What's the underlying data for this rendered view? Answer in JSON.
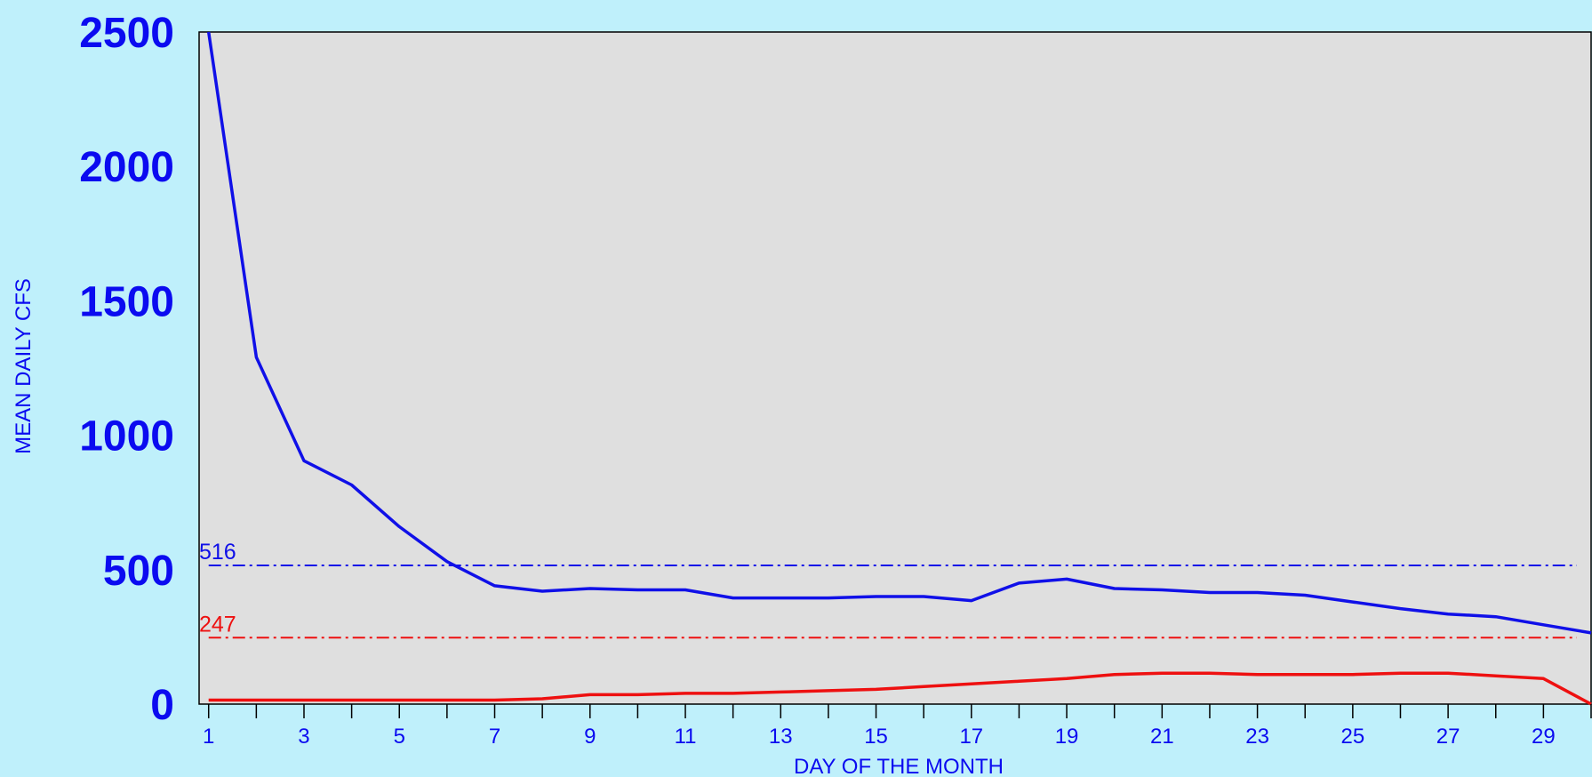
{
  "chart_data": {
    "type": "line",
    "title": "",
    "xlabel": "DAY OF THE MONTH",
    "ylabel": "MEAN DAILY CFS",
    "xlim": [
      0.8,
      30
    ],
    "ylim": [
      0,
      2500
    ],
    "yticks": [
      0,
      500,
      1000,
      1500,
      2000,
      2500
    ],
    "xtick_labels": [
      1,
      3,
      5,
      7,
      9,
      11,
      13,
      15,
      17,
      19,
      21,
      23,
      25,
      27,
      29
    ],
    "x": [
      1,
      2,
      3,
      4,
      5,
      6,
      7,
      8,
      9,
      10,
      11,
      12,
      13,
      14,
      15,
      16,
      17,
      18,
      19,
      20,
      21,
      22,
      23,
      24,
      25,
      26,
      27,
      28,
      29,
      30
    ],
    "series": [
      {
        "color": "#1010e8",
        "values": [
          2500,
          1290,
          905,
          815,
          660,
          530,
          440,
          420,
          430,
          425,
          425,
          395,
          395,
          395,
          400,
          400,
          385,
          450,
          465,
          430,
          425,
          415,
          415,
          405,
          380,
          355,
          335,
          325,
          295,
          265
        ]
      },
      {
        "color": "#ee1010",
        "values": [
          15,
          15,
          15,
          15,
          15,
          15,
          15,
          20,
          35,
          35,
          40,
          40,
          45,
          50,
          55,
          65,
          75,
          85,
          95,
          110,
          115,
          115,
          110,
          110,
          110,
          115,
          115,
          105,
          95,
          0
        ]
      }
    ],
    "reference_lines": [
      {
        "label": "516",
        "value": 516,
        "color": "#1010e8"
      },
      {
        "label": "247",
        "value": 247,
        "color": "#ee1010"
      }
    ],
    "plot_background": "#dfdfdf",
    "grid": false,
    "legend": "none"
  }
}
